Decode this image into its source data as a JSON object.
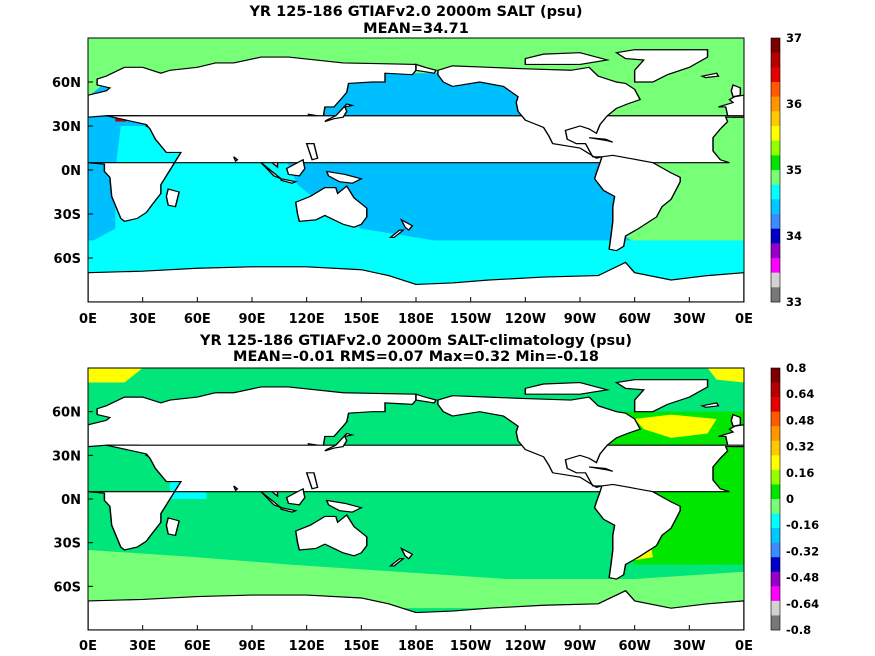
{
  "panels": [
    {
      "id": "top",
      "title_line1": "YR 125-186 GTIAFv2.0 2000m SALT (psu)",
      "title_line2": "MEAN=34.71",
      "colorbar": {
        "labels": [
          "37",
          "36",
          "35",
          "34",
          "33"
        ],
        "colors": [
          "#7a0000",
          "#b40000",
          "#e60000",
          "#ff5a00",
          "#ff9600",
          "#ffc800",
          "#ffff00",
          "#96ff00",
          "#00e600",
          "#78ff78",
          "#00ffff",
          "#00c8ff",
          "#3c8cff",
          "#0000c8",
          "#9600c8",
          "#ff00ff",
          "#d2d2d2",
          "#787878"
        ]
      },
      "ocean_colors": {
        "pacific": "#00bfff",
        "atlantic": "#78ff78",
        "indian": "#00ffff",
        "southern": "#00ffff",
        "arctic": "#78ff78",
        "mediterranean": "#b40000"
      }
    },
    {
      "id": "bottom",
      "title_line1": "YR 125-186 GTIAFv2.0 2000m SALT-climatology (psu)",
      "title_line2": "MEAN=-0.01   RMS=0.07   Max=0.32   Min=-0.18",
      "colorbar": {
        "labels": [
          "0.8",
          "0.64",
          "0.48",
          "0.32",
          "0.16",
          "0",
          "-0.16",
          "-0.32",
          "-0.48",
          "-0.64",
          "-0.8"
        ],
        "colors": [
          "#7a0000",
          "#b40000",
          "#e60000",
          "#ff5a00",
          "#ff9600",
          "#ffc800",
          "#ffff00",
          "#96ff00",
          "#00e600",
          "#78ff78",
          "#00ffff",
          "#00c8ff",
          "#3c8cff",
          "#0000c8",
          "#9600c8",
          "#ff00ff",
          "#d2d2d2",
          "#787878"
        ]
      },
      "ocean_colors": {
        "pacific": "#00e67a",
        "atlantic": "#00e600",
        "atlantic_north": "#ffff00",
        "indian": "#00e67a",
        "southern": "#78ff78",
        "arctic": "#ffff00"
      }
    }
  ],
  "lon_labels": [
    "0E",
    "30E",
    "60E",
    "90E",
    "120E",
    "150E",
    "180E",
    "150W",
    "120W",
    "90W",
    "60W",
    "30W",
    "0E"
  ],
  "lat_labels": [
    "60N",
    "30N",
    "0N",
    "30S",
    "60S"
  ],
  "lat_values": [
    60,
    30,
    0,
    -30,
    -60
  ]
}
